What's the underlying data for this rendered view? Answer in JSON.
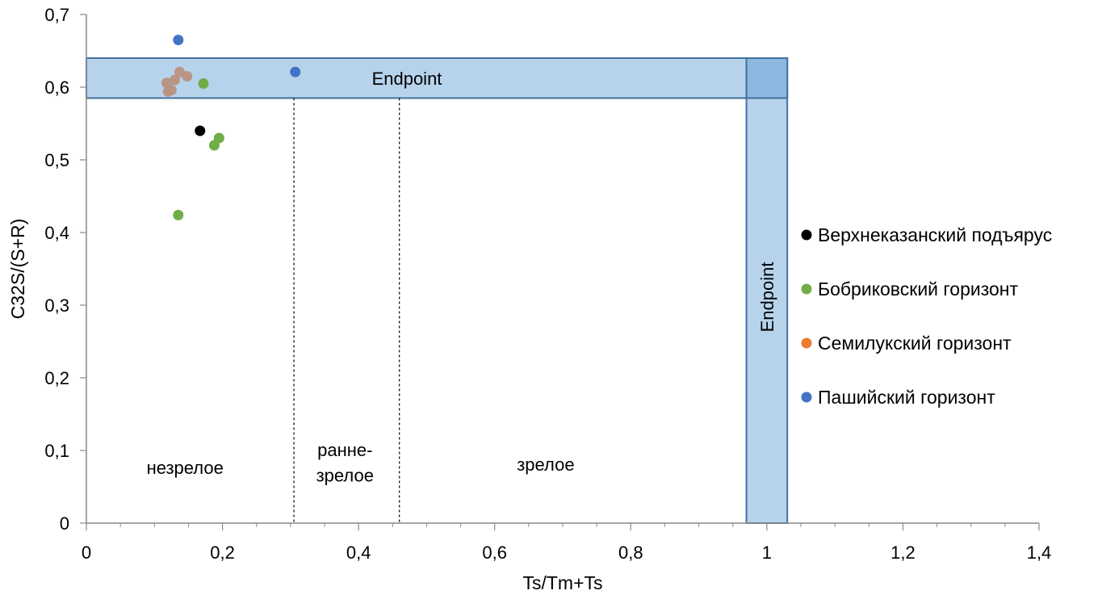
{
  "chart_data": {
    "type": "scatter",
    "xlabel": "Ts/Tm+Ts",
    "ylabel": "C32S/(S+R)",
    "xlim": [
      0,
      1.4
    ],
    "ylim": [
      0,
      0.7
    ],
    "x_ticks": [
      "0",
      "0,2",
      "0,4",
      "0,6",
      "0,8",
      "1",
      "1,2",
      "1,4"
    ],
    "y_ticks": [
      "0",
      "0,1",
      "0,2",
      "0,3",
      "0,4",
      "0,5",
      "0,6",
      "0,7"
    ],
    "grid": false,
    "legend_position": "right",
    "bands": [
      {
        "label": "Endpoint",
        "orientation": "horizontal",
        "x_range": [
          0,
          1.03
        ],
        "y_range": [
          0.585,
          0.64
        ],
        "color": "#b7d3ec"
      },
      {
        "label": "Endpoint",
        "orientation": "vertical",
        "x_range": [
          0.97,
          1.03
        ],
        "y_range": [
          0,
          0.64
        ],
        "color": "#b7d3ec"
      }
    ],
    "band_overlap_color": "#8db8e1",
    "zone_dividers": [
      0.305,
      0.46
    ],
    "zones": [
      {
        "label": "незрелое",
        "x": 0.145,
        "y": 0.068
      },
      {
        "label": "ранне-",
        "x": 0.38,
        "y": 0.092
      },
      {
        "label": "зрелое",
        "x": 0.38,
        "y": 0.057
      },
      {
        "label": "зрелое",
        "x": 0.675,
        "y": 0.072
      }
    ],
    "series": [
      {
        "name": "Верхнеказанский подъярус",
        "color": "#000000",
        "points": [
          [
            0.167,
            0.54
          ]
        ]
      },
      {
        "name": "Бобриковский горизонт",
        "color": "#70ad47",
        "points": [
          [
            0.172,
            0.605
          ],
          [
            0.195,
            0.53
          ],
          [
            0.188,
            0.52
          ],
          [
            0.135,
            0.424
          ]
        ]
      },
      {
        "name": "Семилукский горизонт",
        "color": "#ed7d31",
        "marker_color": "#b8917f",
        "points": [
          [
            0.118,
            0.606
          ],
          [
            0.137,
            0.621
          ],
          [
            0.148,
            0.615
          ],
          [
            0.13,
            0.61
          ],
          [
            0.12,
            0.594
          ],
          [
            0.125,
            0.596
          ]
        ]
      },
      {
        "name": "Пашийский горизонт",
        "color": "#4472c4",
        "points": [
          [
            0.135,
            0.665
          ],
          [
            0.307,
            0.621
          ]
        ]
      }
    ]
  }
}
